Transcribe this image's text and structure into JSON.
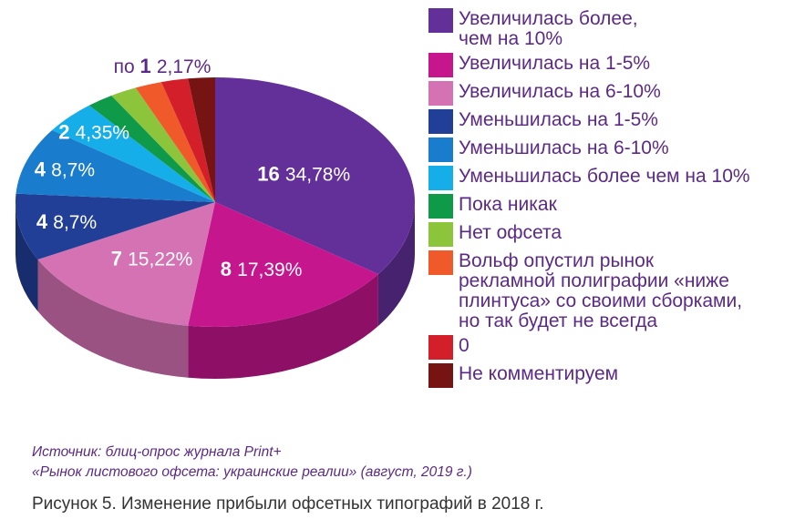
{
  "chart_data": {
    "type": "pie",
    "style": "3d",
    "categories": [
      "Увеличилась более, чем на 10%",
      "Увеличилась на 1-5%",
      "Увеличилась на 6-10%",
      "Уменьшилась на 1-5%",
      "Уменьшилась на 6-10%",
      "Уменьшилась более чем на 10%",
      "Пока никак",
      "Нет офсета",
      "Вольф опустил рынок рекламной полиграфии «ниже плинтуса» со своими сборками, но так будет не всегда",
      "0",
      "Не комментируем"
    ],
    "values": [
      16,
      8,
      7,
      4,
      4,
      2,
      1,
      1,
      1,
      1,
      1
    ],
    "count_labels": [
      "16",
      "8",
      "7",
      "4",
      "4",
      "2",
      "",
      "",
      "",
      "",
      ""
    ],
    "percent_labels": [
      "34,78%",
      "17,39%",
      "15,22%",
      "8,7%",
      "8,7%",
      "4,35%",
      "",
      "",
      "",
      "",
      ""
    ],
    "colors": [
      "#63309a",
      "#c5168e",
      "#d572b3",
      "#223f97",
      "#1a7ccc",
      "#16aee8",
      "#0f9a4a",
      "#8cc43c",
      "#f0592a",
      "#d31f2a",
      "#761414"
    ],
    "shared_label": {
      "prefix": "по",
      "count": "1",
      "percent": "2,17%"
    },
    "legend_position": "right"
  },
  "legend": [
    {
      "lines": [
        "Увеличилась более,",
        "чем на 10%"
      ]
    },
    {
      "lines": [
        "Увеличилась на 1-5%"
      ]
    },
    {
      "lines": [
        "Увеличилась на 6-10%"
      ]
    },
    {
      "lines": [
        "Уменьшилась на 1-5%"
      ]
    },
    {
      "lines": [
        "Уменьшилась на 6-10%"
      ]
    },
    {
      "lines": [
        "Уменьшилась более чем на 10%"
      ]
    },
    {
      "lines": [
        "Пока никак"
      ]
    },
    {
      "lines": [
        "Нет офсета"
      ]
    },
    {
      "lines": [
        "Вольф опустил рынок",
        "рекламной полиграфии «ниже",
        "плинтуса» со своими сборками,",
        "но так будет не всегда"
      ]
    },
    {
      "lines": [
        "0"
      ]
    },
    {
      "lines": [
        "Не комментируем"
      ]
    }
  ],
  "source": {
    "line1": "Источник: блиц-опрос журнала Print+",
    "line2": "«Рынок листового офсета: украинские реалии» (август, 2019 г.)"
  },
  "caption": "Рисунок 5. Изменение прибыли офсетных типографий в 2018 г."
}
